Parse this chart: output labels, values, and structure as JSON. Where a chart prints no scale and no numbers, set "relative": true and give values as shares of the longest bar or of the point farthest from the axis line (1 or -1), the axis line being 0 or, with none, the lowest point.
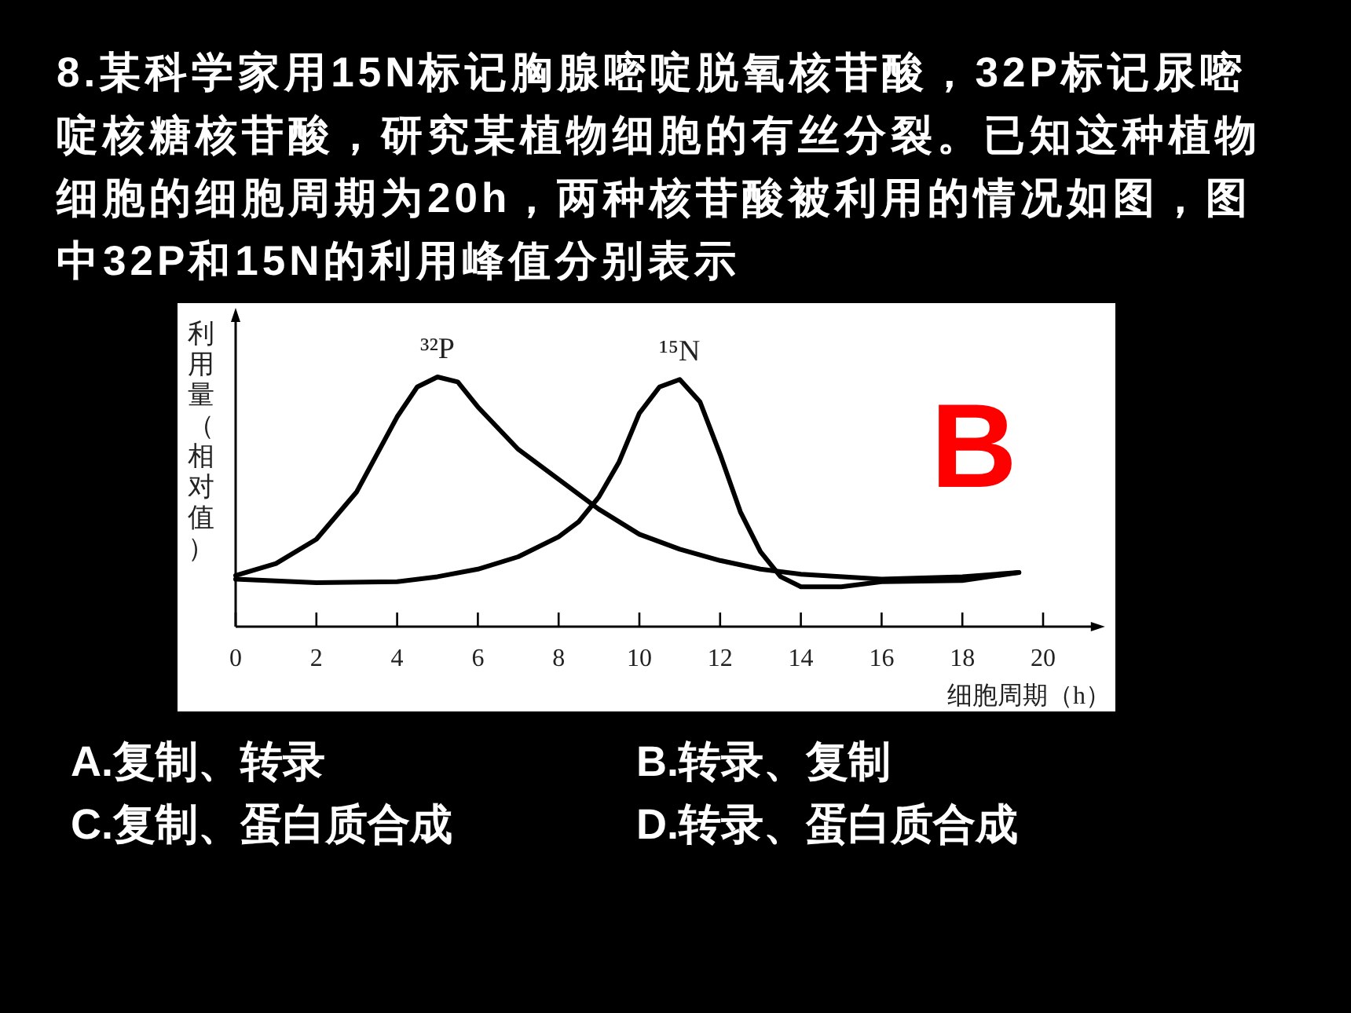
{
  "chart_data": {
    "type": "line",
    "relative": true,
    "title": "8.某科学家用15N标记胸腺嘧啶脱氧核苷酸，32P标记尿嘧啶核糖核苷酸，研究某植物细胞的有丝分裂。已知这种植物细胞的细胞周期为20h，两种核苷酸被利用的情况如图，图中32P和15N的利用峰值分别表示",
    "xlabel": "细胞周期（h）",
    "ylabel": "利用量（相对值）",
    "xlim": [
      0,
      21.3
    ],
    "xticks": [
      0,
      2,
      4,
      6,
      8,
      10,
      12,
      14,
      16,
      18,
      20
    ],
    "line_style": "solid",
    "series": [
      {
        "name": "³²P",
        "color": "#000000",
        "x": [
          0,
          1,
          2,
          3,
          4,
          4.5,
          5,
          5.5,
          6,
          7,
          8,
          9,
          10,
          11,
          12,
          13,
          14,
          16,
          18,
          19.4
        ],
        "values": [
          0.205,
          0.253,
          0.35,
          0.54,
          0.84,
          0.96,
          1.0,
          0.98,
          0.88,
          0.71,
          0.59,
          0.47,
          0.37,
          0.31,
          0.265,
          0.23,
          0.21,
          0.19,
          0.2,
          0.217
        ]
      },
      {
        "name": "¹⁵N",
        "color": "#000000",
        "x": [
          0,
          2,
          4,
          5,
          6,
          7,
          8,
          8.5,
          9,
          9.5,
          10,
          10.5,
          11,
          11.5,
          12,
          12.5,
          13,
          13.5,
          14,
          15,
          16,
          18,
          19.4
        ],
        "values": [
          0.19,
          0.176,
          0.18,
          0.2,
          0.23,
          0.28,
          0.36,
          0.42,
          0.52,
          0.66,
          0.855,
          0.96,
          0.99,
          0.9,
          0.69,
          0.46,
          0.3,
          0.2,
          0.16,
          0.16,
          0.18,
          0.185,
          0.217
        ]
      }
    ],
    "annotations": [
      "B",
      "A.复制、转录",
      "B.转录、复制",
      "C.复制、蛋白质合成",
      "D.转录、蛋白质合成"
    ]
  }
}
